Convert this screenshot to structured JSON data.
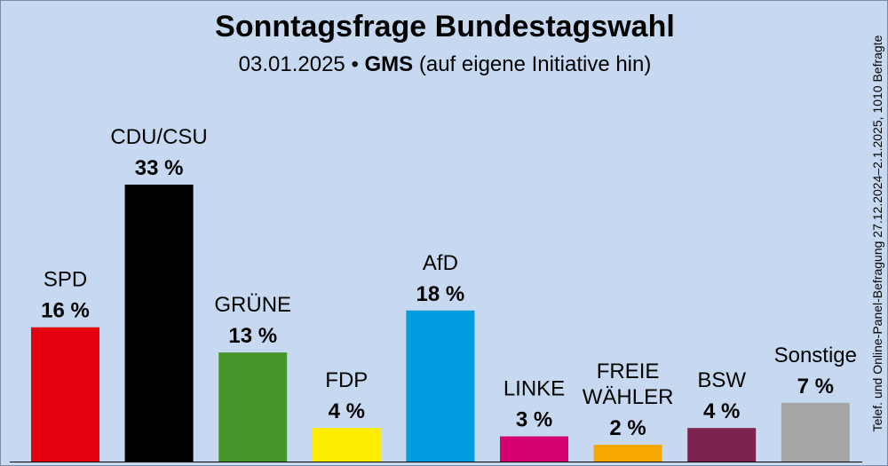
{
  "header": {
    "title": "Sonntagsfrage Bundestagswahl",
    "subtitle_date": "03.01.2025",
    "subtitle_sep": "•",
    "subtitle_institute": "GMS",
    "subtitle_note": "(auf eigene Initiative hin)"
  },
  "side_note": "Telef. und Online-Panel-Befragung 27.12.2024–2.1.2025, 1010 Befragte",
  "chart_data": {
    "type": "bar",
    "title": "Sonntagsfrage Bundestagswahl",
    "categories": [
      "SPD",
      "CDU/CSU",
      "GRÜNE",
      "FDP",
      "AfD",
      "LINKE",
      "FREIE WÄHLER",
      "BSW",
      "Sonstige"
    ],
    "category_lines": [
      [
        "SPD"
      ],
      [
        "CDU/CSU"
      ],
      [
        "GRÜNE"
      ],
      [
        "FDP"
      ],
      [
        "AfD"
      ],
      [
        "LINKE"
      ],
      [
        "FREIE",
        "WÄHLER"
      ],
      [
        "BSW"
      ],
      [
        "Sonstige"
      ]
    ],
    "values": [
      16,
      33,
      13,
      4,
      18,
      3,
      2,
      4,
      7
    ],
    "value_labels": [
      "16 %",
      "33 %",
      "13 %",
      "4 %",
      "18 %",
      "3 %",
      "2 %",
      "4 %",
      "7 %"
    ],
    "colors": [
      "#e3000f",
      "#000000",
      "#46962b",
      "#ffed00",
      "#009ee0",
      "#d4006f",
      "#f7a800",
      "#7b2450",
      "#a6a6a6"
    ],
    "unit": "%",
    "xlabel": "",
    "ylabel": "",
    "grid": false,
    "legend": "none"
  }
}
